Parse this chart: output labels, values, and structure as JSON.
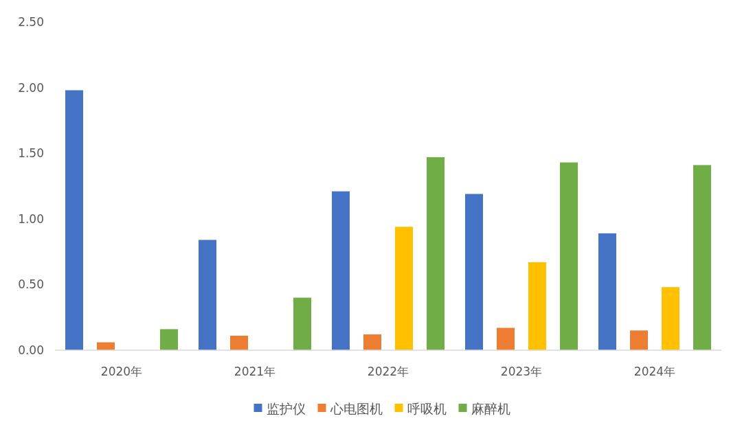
{
  "chart_data": {
    "type": "bar",
    "categories": [
      "2020年",
      "2021年",
      "2022年",
      "2023年",
      "2024年"
    ],
    "series": [
      {
        "name": "监护仪",
        "color": "#4472c4",
        "values": [
          1.98,
          0.84,
          1.21,
          1.19,
          0.89
        ]
      },
      {
        "name": "心电图机",
        "color": "#ed7d31",
        "values": [
          0.06,
          0.11,
          0.12,
          0.17,
          0.15
        ]
      },
      {
        "name": "呼吸机",
        "color": "#ffc000",
        "values": [
          null,
          null,
          0.94,
          0.67,
          0.48
        ]
      },
      {
        "name": "麻醉机",
        "color": "#70ad47",
        "values": [
          0.16,
          0.4,
          1.47,
          1.43,
          1.41
        ]
      }
    ],
    "ylim": [
      0,
      2.5
    ],
    "yticks": [
      {
        "value": 0,
        "label": "0.00"
      },
      {
        "value": 0.5,
        "label": "0.50"
      },
      {
        "value": 1,
        "label": "1.00"
      },
      {
        "value": 1.5,
        "label": "1.50"
      },
      {
        "value": 2,
        "label": "2.00"
      },
      {
        "value": 2.5,
        "label": "2.50"
      }
    ],
    "grid": false,
    "legend": "bottom"
  }
}
